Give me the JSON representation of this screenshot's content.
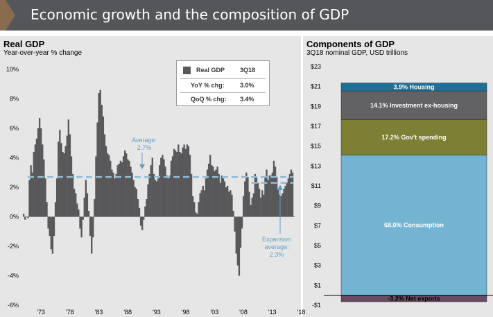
{
  "header": {
    "title": "Economic growth and the composition of GDP"
  },
  "left_panel": {
    "title": "Real GDP",
    "subtitle": "Year-over-year % change",
    "legend": {
      "series_label": "Real GDP",
      "period": "3Q18",
      "rows": [
        {
          "label": "YoY % chg:",
          "value": "3.0%"
        },
        {
          "label": "QoQ % chg:",
          "value": "3.4%"
        }
      ]
    },
    "annotations": {
      "average": [
        "Average:",
        "2.7%"
      ],
      "expansion": [
        "Expansion",
        "average:",
        "2.3%"
      ]
    }
  },
  "right_panel": {
    "title": "Components of GDP",
    "subtitle": "3Q18 nominal GDP, USD trillions"
  },
  "colors": {
    "bar": "#58585a",
    "average_line": "#8fbcd6",
    "housing": "#1f6f96",
    "investment": "#626264",
    "government": "#7d7f34",
    "consumption": "#74b4d2",
    "net_exports": "#6b4a63"
  },
  "chart_data": [
    {
      "type": "bar",
      "title": "Real GDP",
      "subtitle": "Year-over-year % change",
      "ylim": [
        -6,
        10
      ],
      "yticks": [
        "-6%",
        "-4%",
        "-2%",
        "0%",
        "2%",
        "4%",
        "6%",
        "8%",
        "10%"
      ],
      "xticks": [
        "'73",
        "'78",
        "'83",
        "'88",
        "'93",
        "'98",
        "'03",
        "'08",
        "'13",
        "'18"
      ],
      "x_start": "1Q70",
      "x_end": "3Q18",
      "series": [
        {
          "name": "Real GDP",
          "values": [
            0.2,
            -0.2,
            0.0,
            -0.1,
            2.5,
            3.5,
            3.0,
            4.4,
            4.9,
            5.3,
            6.0,
            6.7,
            6.0,
            4.9,
            3.9,
            2.6,
            1.0,
            -0.8,
            -1.3,
            -2.2,
            -2.5,
            -1.3,
            1.0,
            2.6,
            5.1,
            5.9,
            5.0,
            4.4,
            4.3,
            4.8,
            5.5,
            6.6,
            5.6,
            4.1,
            2.9,
            1.9,
            1.6,
            0.9,
            0.5,
            -0.8,
            -1.4,
            -0.2,
            1.3,
            2.5,
            1.6,
            0.4,
            -1.3,
            -2.5,
            -1.4,
            1.2,
            4.1,
            6.4,
            8.4,
            8.6,
            7.6,
            6.8,
            5.6,
            4.8,
            4.3,
            4.2,
            3.8,
            3.2,
            3.0,
            2.6,
            2.9,
            3.5,
            3.6,
            3.8,
            3.7,
            4.1,
            4.5,
            4.3,
            3.9,
            3.8,
            3.4,
            3.0,
            2.5,
            2.0,
            1.9,
            1.2,
            0.6,
            -0.6,
            -0.9,
            -0.2,
            0.7,
            1.2,
            2.2,
            2.9,
            3.5,
            4.0,
            2.9,
            2.5,
            2.4,
            2.6,
            3.5,
            4.0,
            4.2,
            3.9,
            3.4,
            2.8,
            2.6,
            2.8,
            3.8,
            4.1,
            4.6,
            4.5,
            4.4,
            4.9,
            4.4,
            4.3,
            4.7,
            4.9,
            4.6,
            4.9,
            4.8,
            4.2,
            2.9,
            1.4,
            1.0,
            0.3,
            0.2,
            1.0,
            1.6,
            1.8,
            2.1,
            1.8,
            2.6,
            3.2,
            3.6,
            4.2,
            3.5,
            3.4,
            3.1,
            3.2,
            3.4,
            2.9,
            2.3,
            2.8,
            2.6,
            2.4,
            2.0,
            2.1,
            1.7,
            1.8,
            1.5,
            0.4,
            -1.0,
            -2.5,
            -3.3,
            -4.0,
            -2.1,
            -0.8,
            1.4,
            2.4,
            3.0,
            2.7,
            1.7,
            0.8,
            1.3,
            1.6,
            2.9,
            2.7,
            2.3,
            1.9,
            1.3,
            1.8,
            1.5,
            2.7,
            3.2,
            2.5,
            2.8,
            2.8,
            3.0,
            3.8,
            3.4,
            2.7,
            1.9,
            1.5,
            1.4,
            1.6,
            1.9,
            2.1,
            2.3,
            2.6,
            2.9,
            3.2,
            3.0
          ]
        }
      ],
      "lines": [
        {
          "name": "Average",
          "value": 2.7
        },
        {
          "name": "Expansion average",
          "value": 2.3
        }
      ]
    },
    {
      "type": "bar",
      "stacked": true,
      "title": "Components of GDP",
      "subtitle": "3Q18 nominal GDP, USD trillions",
      "ylim": [
        -1,
        23
      ],
      "yticks": [
        "-$1",
        "$1",
        "$3",
        "$5",
        "$7",
        "$9",
        "$11",
        "$13",
        "$15",
        "$17",
        "$19",
        "$21",
        "$23"
      ],
      "segments": [
        {
          "label": "-3.2%  Net exports",
          "value": -0.65,
          "color_key": "net_exports",
          "text_color": "#000000"
        },
        {
          "label": "68.0% Consumption",
          "value": 14.1,
          "color_key": "consumption",
          "text_color": "#ffffff"
        },
        {
          "label": "17.2% Gov't spending",
          "value": 3.55,
          "color_key": "government",
          "text_color": "#ffffff"
        },
        {
          "label": "14.1% Investment ex-housing",
          "value": 2.9,
          "color_key": "investment",
          "text_color": "#ffffff"
        },
        {
          "label": "3.9% Housing",
          "value": 0.8,
          "color_key": "housing",
          "text_color": "#ffffff"
        }
      ]
    }
  ]
}
